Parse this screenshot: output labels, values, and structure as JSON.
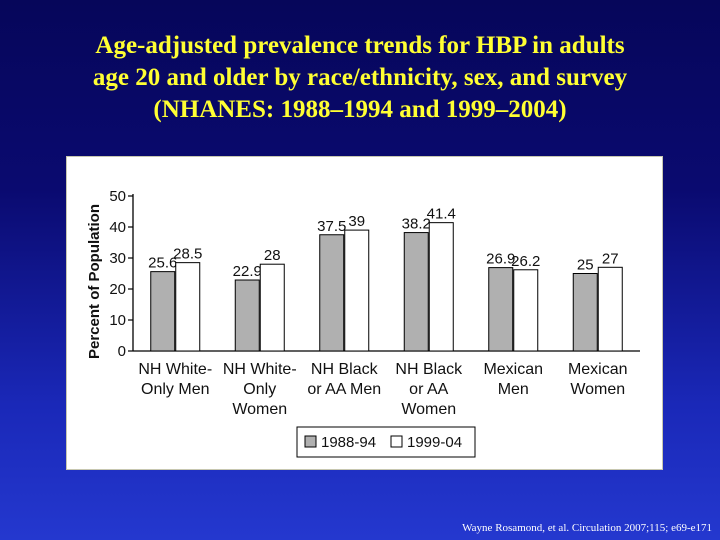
{
  "slide": {
    "title_lines": [
      "Age-adjusted prevalence trends for HBP in adults",
      "age 20 and older by race/ethnicity, sex, and survey",
      "(NHANES: 1988–1994 and 1999–2004)"
    ],
    "footer": "Wayne Rosamond, et al. Circulation  2007;115; e69-e171",
    "title_color": "#ffff33"
  },
  "chart_data": {
    "type": "bar",
    "ylabel": "Percent of Population",
    "ylim": [
      0,
      50
    ],
    "yticks": [
      0,
      10,
      20,
      30,
      40,
      50
    ],
    "categories": [
      [
        "NH White-",
        "Only Men"
      ],
      [
        "NH White-",
        "Only",
        "Women"
      ],
      [
        "NH Black",
        "or AA Men"
      ],
      [
        "NH Black",
        "or AA",
        "Women"
      ],
      [
        "Mexican",
        "Men"
      ],
      [
        "Mexican",
        "Women"
      ]
    ],
    "series": [
      {
        "name": "1988-94",
        "values": [
          25.6,
          22.9,
          37.5,
          38.2,
          26.9,
          25
        ],
        "labels": [
          "25.6",
          "22.9",
          "37.5",
          "38.2",
          "26.9",
          "25"
        ],
        "color": "#b0b0b0"
      },
      {
        "name": "1999-04",
        "values": [
          28.5,
          28,
          39,
          41.4,
          26.2,
          27
        ],
        "labels": [
          "28.5",
          "28",
          "39",
          "41.4",
          "26.2",
          "27"
        ],
        "color": "#ffffff"
      }
    ],
    "legend_position": "bottom",
    "grid": false
  }
}
